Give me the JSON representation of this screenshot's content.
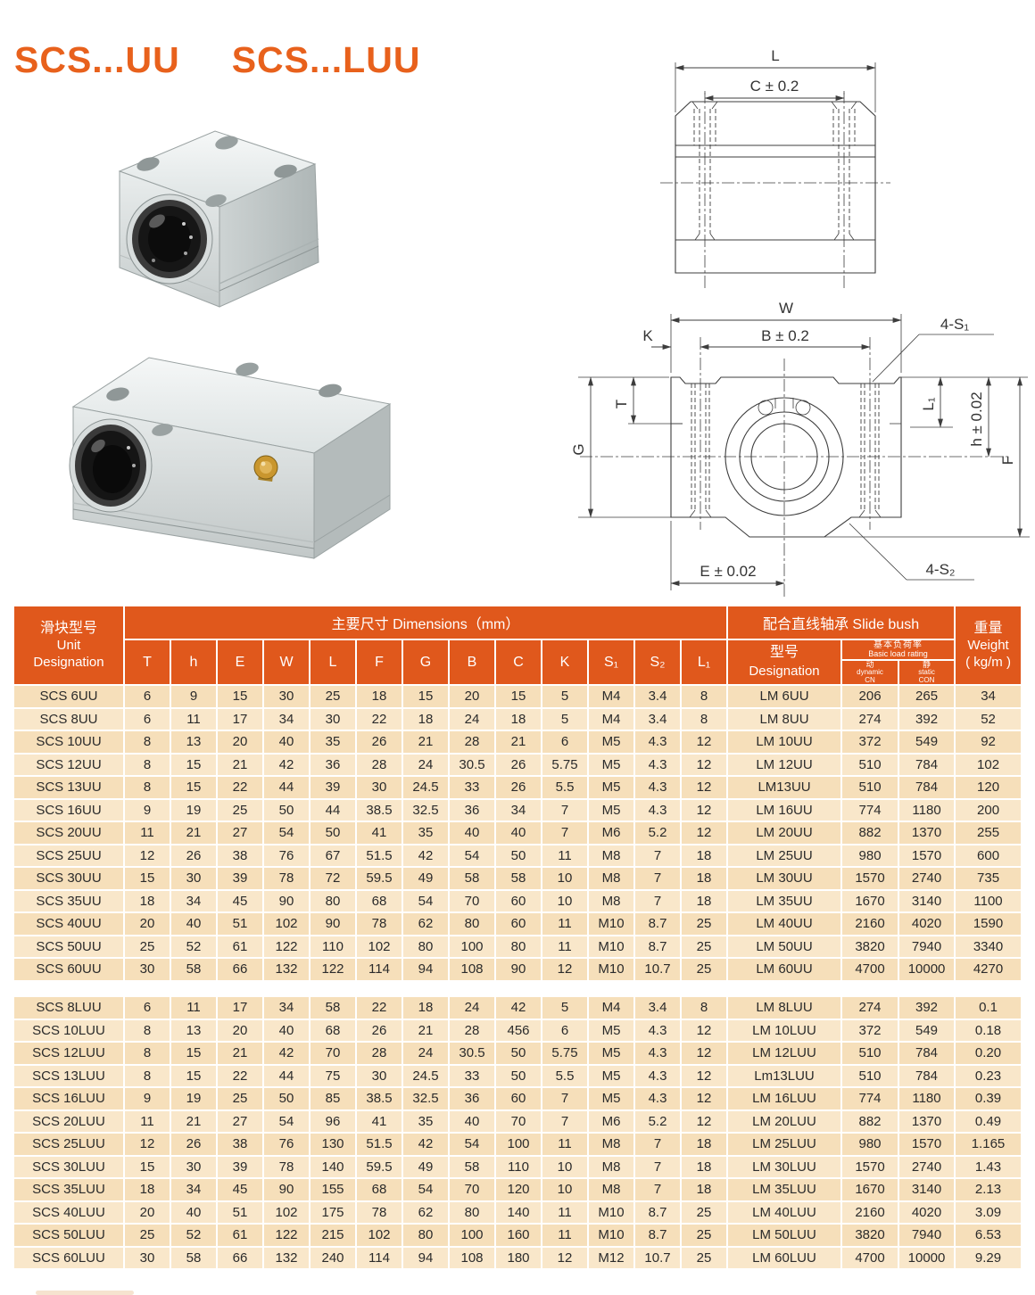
{
  "page": {
    "title_left": "SCS...UU",
    "title_right": "SCS...LUU"
  },
  "colors": {
    "accent_title": "#e8611c",
    "table_header": "#e0581c",
    "row_light": "#f9e7ca",
    "row_dark": "#f6dfba"
  },
  "drawings": {
    "side": {
      "L": "L",
      "C": "C ± 0.2"
    },
    "front": {
      "W": "W",
      "B": "B ± 0.2",
      "K": "K",
      "S1": "4-S₁",
      "T": "T",
      "G": "G",
      "L1": "L₁",
      "h": "h ± 0.02",
      "F": "F",
      "E": "E ± 0.02",
      "S2": "4-S₂"
    }
  },
  "table": {
    "header": {
      "unit_cn": "滑块型号",
      "unit_en_1": "Unit",
      "unit_en_2": "Designation",
      "dims_title": "主要尺寸  Dimensions（mm）",
      "dim_cols": [
        "T",
        "h",
        "E",
        "W",
        "L",
        "F",
        "G",
        "B",
        "C",
        "K",
        "S₁",
        "S₂",
        "L₁"
      ],
      "bush_title": "配合直线轴承  Slide bush",
      "model_cn": "型号",
      "model_en": "Designation",
      "load_cn": "基本负荷率",
      "load_en": "Basic load rating",
      "dyn_cn": "动",
      "dyn_en": "dynamic",
      "dyn_unit": "CN",
      "stat_cn": "静",
      "stat_en": "static",
      "stat_unit": "CON",
      "weight_cn": "重量",
      "weight_en": "Weight",
      "weight_unit": "( kg/m )"
    },
    "uu_rows": [
      [
        "SCS 6UU",
        "6",
        "9",
        "15",
        "30",
        "25",
        "18",
        "15",
        "20",
        "15",
        "5",
        "M4",
        "3.4",
        "8",
        "LM 6UU",
        "206",
        "265",
        "34"
      ],
      [
        "SCS 8UU",
        "6",
        "11",
        "17",
        "34",
        "30",
        "22",
        "18",
        "24",
        "18",
        "5",
        "M4",
        "3.4",
        "8",
        "LM 8UU",
        "274",
        "392",
        "52"
      ],
      [
        "SCS 10UU",
        "8",
        "13",
        "20",
        "40",
        "35",
        "26",
        "21",
        "28",
        "21",
        "6",
        "M5",
        "4.3",
        "12",
        "LM 10UU",
        "372",
        "549",
        "92"
      ],
      [
        "SCS 12UU",
        "8",
        "15",
        "21",
        "42",
        "36",
        "28",
        "24",
        "30.5",
        "26",
        "5.75",
        "M5",
        "4.3",
        "12",
        "LM 12UU",
        "510",
        "784",
        "102"
      ],
      [
        "SCS 13UU",
        "8",
        "15",
        "22",
        "44",
        "39",
        "30",
        "24.5",
        "33",
        "26",
        "5.5",
        "M5",
        "4.3",
        "12",
        "LM13UU",
        "510",
        "784",
        "120"
      ],
      [
        "SCS 16UU",
        "9",
        "19",
        "25",
        "50",
        "44",
        "38.5",
        "32.5",
        "36",
        "34",
        "7",
        "M5",
        "4.3",
        "12",
        "LM 16UU",
        "774",
        "1180",
        "200"
      ],
      [
        "SCS 20UU",
        "11",
        "21",
        "27",
        "54",
        "50",
        "41",
        "35",
        "40",
        "40",
        "7",
        "M6",
        "5.2",
        "12",
        "LM 20UU",
        "882",
        "1370",
        "255"
      ],
      [
        "SCS 25UU",
        "12",
        "26",
        "38",
        "76",
        "67",
        "51.5",
        "42",
        "54",
        "50",
        "11",
        "M8",
        "7",
        "18",
        "LM 25UU",
        "980",
        "1570",
        "600"
      ],
      [
        "SCS 30UU",
        "15",
        "30",
        "39",
        "78",
        "72",
        "59.5",
        "49",
        "58",
        "58",
        "10",
        "M8",
        "7",
        "18",
        "LM 30UU",
        "1570",
        "2740",
        "735"
      ],
      [
        "SCS 35UU",
        "18",
        "34",
        "45",
        "90",
        "80",
        "68",
        "54",
        "70",
        "60",
        "10",
        "M8",
        "7",
        "18",
        "LM 35UU",
        "1670",
        "3140",
        "1100"
      ],
      [
        "SCS 40UU",
        "20",
        "40",
        "51",
        "102",
        "90",
        "78",
        "62",
        "80",
        "60",
        "11",
        "M10",
        "8.7",
        "25",
        "LM 40UU",
        "2160",
        "4020",
        "1590"
      ],
      [
        "SCS 50UU",
        "25",
        "52",
        "61",
        "122",
        "110",
        "102",
        "80",
        "100",
        "80",
        "11",
        "M10",
        "8.7",
        "25",
        "LM 50UU",
        "3820",
        "7940",
        "3340"
      ],
      [
        "SCS 60UU",
        "30",
        "58",
        "66",
        "132",
        "122",
        "114",
        "94",
        "108",
        "90",
        "12",
        "M10",
        "10.7",
        "25",
        "LM 60UU",
        "4700",
        "10000",
        "4270"
      ]
    ],
    "luu_rows": [
      [
        "SCS 8LUU",
        "6",
        "11",
        "17",
        "34",
        "58",
        "22",
        "18",
        "24",
        "42",
        "5",
        "M4",
        "3.4",
        "8",
        "LM 8LUU",
        "274",
        "392",
        "0.1"
      ],
      [
        "SCS 10LUU",
        "8",
        "13",
        "20",
        "40",
        "68",
        "26",
        "21",
        "28",
        "456",
        "6",
        "M5",
        "4.3",
        "12",
        "LM 10LUU",
        "372",
        "549",
        "0.18"
      ],
      [
        "SCS 12LUU",
        "8",
        "15",
        "21",
        "42",
        "70",
        "28",
        "24",
        "30.5",
        "50",
        "5.75",
        "M5",
        "4.3",
        "12",
        "LM 12LUU",
        "510",
        "784",
        "0.20"
      ],
      [
        "SCS 13LUU",
        "8",
        "15",
        "22",
        "44",
        "75",
        "30",
        "24.5",
        "33",
        "50",
        "5.5",
        "M5",
        "4.3",
        "12",
        "Lm13LUU",
        "510",
        "784",
        "0.23"
      ],
      [
        "SCS 16LUU",
        "9",
        "19",
        "25",
        "50",
        "85",
        "38.5",
        "32.5",
        "36",
        "60",
        "7",
        "M5",
        "4.3",
        "12",
        "LM 16LUU",
        "774",
        "1180",
        "0.39"
      ],
      [
        "SCS 20LUU",
        "11",
        "21",
        "27",
        "54",
        "96",
        "41",
        "35",
        "40",
        "70",
        "7",
        "M6",
        "5.2",
        "12",
        "LM 20LUU",
        "882",
        "1370",
        "0.49"
      ],
      [
        "SCS 25LUU",
        "12",
        "26",
        "38",
        "76",
        "130",
        "51.5",
        "42",
        "54",
        "100",
        "11",
        "M8",
        "7",
        "18",
        "LM 25LUU",
        "980",
        "1570",
        "1.165"
      ],
      [
        "SCS 30LUU",
        "15",
        "30",
        "39",
        "78",
        "140",
        "59.5",
        "49",
        "58",
        "110",
        "10",
        "M8",
        "7",
        "18",
        "LM 30LUU",
        "1570",
        "2740",
        "1.43"
      ],
      [
        "SCS 35LUU",
        "18",
        "34",
        "45",
        "90",
        "155",
        "68",
        "54",
        "70",
        "120",
        "10",
        "M8",
        "7",
        "18",
        "LM 35LUU",
        "1670",
        "3140",
        "2.13"
      ],
      [
        "SCS 40LUU",
        "20",
        "40",
        "51",
        "102",
        "175",
        "78",
        "62",
        "80",
        "140",
        "11",
        "M10",
        "8.7",
        "25",
        "LM 40LUU",
        "2160",
        "4020",
        "3.09"
      ],
      [
        "SCS 50LUU",
        "25",
        "52",
        "61",
        "122",
        "215",
        "102",
        "80",
        "100",
        "160",
        "11",
        "M10",
        "8.7",
        "25",
        "LM 50LUU",
        "3820",
        "7940",
        "6.53"
      ],
      [
        "SCS 60LUU",
        "30",
        "58",
        "66",
        "132",
        "240",
        "114",
        "94",
        "108",
        "180",
        "12",
        "M12",
        "10.7",
        "25",
        "LM 60LUU",
        "4700",
        "10000",
        "9.29"
      ]
    ]
  }
}
